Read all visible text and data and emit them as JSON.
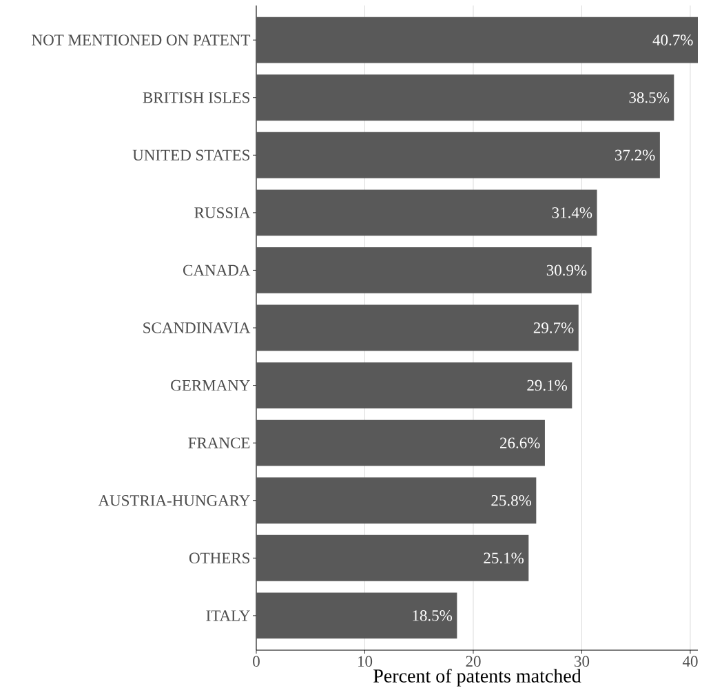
{
  "chart_data": {
    "type": "bar",
    "orientation": "horizontal",
    "categories": [
      "NOT MENTIONED ON PATENT",
      "BRITISH ISLES",
      "UNITED STATES",
      "RUSSIA",
      "CANADA",
      "SCANDINAVIA",
      "GERMANY",
      "FRANCE",
      "AUSTRIA-HUNGARY",
      "OTHERS",
      "ITALY"
    ],
    "values": [
      40.7,
      38.5,
      37.2,
      31.4,
      30.9,
      29.7,
      29.1,
      26.6,
      25.8,
      25.1,
      18.5
    ],
    "value_labels": [
      "40.7%",
      "38.5%",
      "37.2%",
      "31.4%",
      "30.9%",
      "29.7%",
      "29.1%",
      "26.6%",
      "25.8%",
      "25.1%",
      "18.5%"
    ],
    "color": "#595959",
    "xlim": [
      0,
      40.7
    ],
    "xticks": [
      0,
      10,
      20,
      30,
      40
    ],
    "xlabel": "Percent of patents matched",
    "grid": "x"
  }
}
